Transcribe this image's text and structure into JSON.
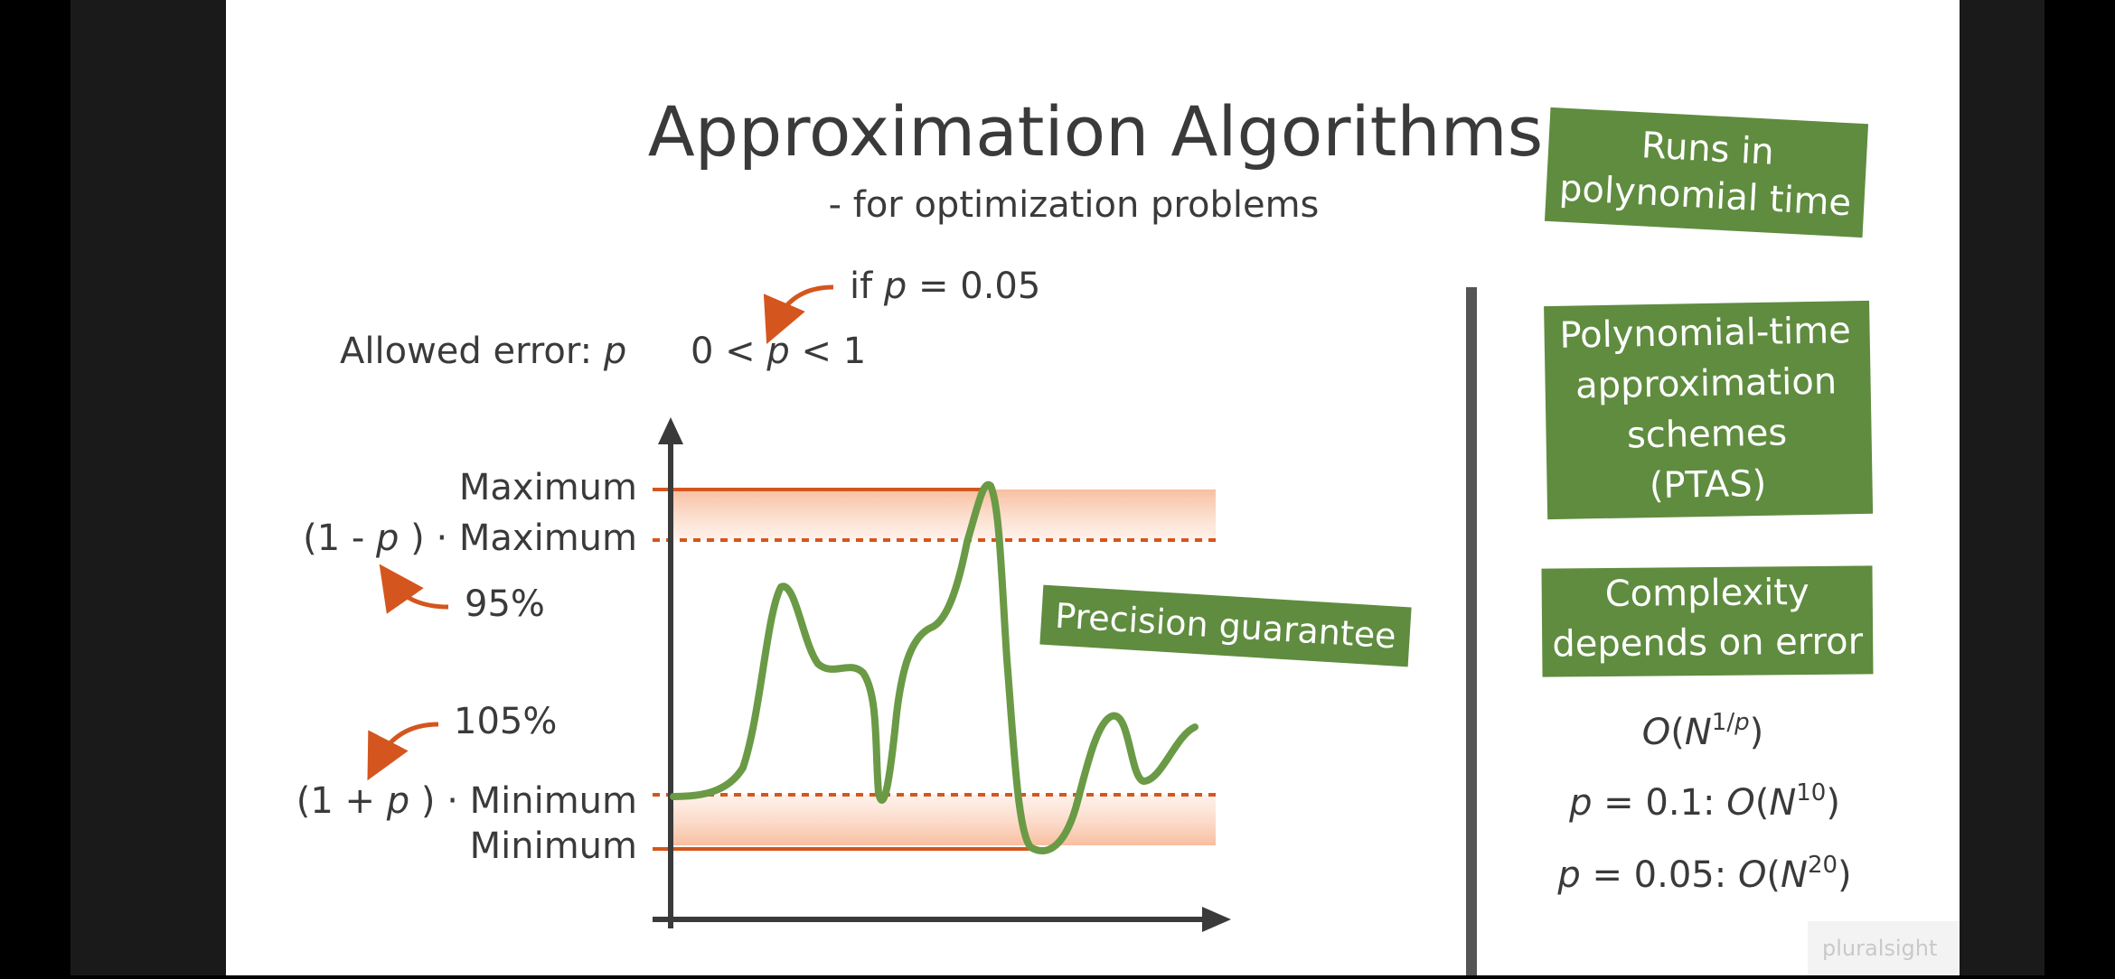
{
  "title": "Approximation Algorithms",
  "subtitle": "- for optimization problems",
  "allowed_error_label": "Allowed error:",
  "p_var": "p",
  "range_zero": "0 <",
  "range_one": "< 1",
  "if_label": "if",
  "if_value": "= 0.05",
  "chart": {
    "maximum": "Maximum",
    "factor_max_open": "(1 -",
    "factor_max_close": ") · Maximum",
    "pct_95": "95%",
    "pct_105": "105%",
    "factor_min_open": "(1 +",
    "factor_min_close": ") · Minimum",
    "minimum": "Minimum",
    "precision_label": "Precision guarantee"
  },
  "boxes": {
    "runs": [
      "Runs in",
      "polynomial time"
    ],
    "ptas": [
      "Polynomial-time",
      "approximation",
      "schemes",
      "(PTAS)"
    ],
    "complexity": [
      "Complexity",
      "depends on error"
    ]
  },
  "formulas": {
    "general_o": "O",
    "general_n": "N",
    "general_exp": "1/",
    "general_exp_p": "p",
    "ex1_value": "= 0.1:",
    "ex1_o": "O",
    "ex1_n": "N",
    "ex1_exp": "10",
    "ex2_value": "= 0.05:",
    "ex2_o": "O",
    "ex2_n": "N",
    "ex2_exp": "20"
  },
  "watermark": "pluralsight",
  "colors": {
    "green_box": "#5f8c3f",
    "curve": "#6a9a45",
    "orange": "#d4561e",
    "text": "#3a3a3a"
  }
}
